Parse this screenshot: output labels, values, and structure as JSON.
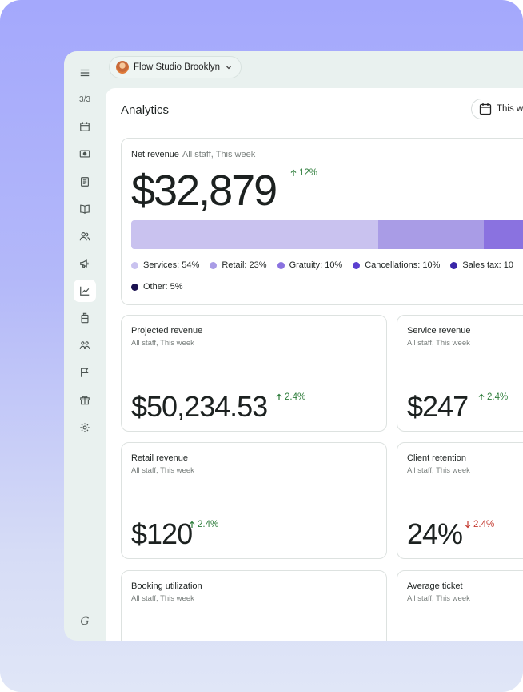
{
  "app": {
    "location_name": "Flow Studio Brooklyn",
    "nav_count": "3/3",
    "logo_glyph": "G"
  },
  "sidebar": {
    "items": [
      {
        "icon": "menu-icon"
      },
      {
        "icon": "calendar-icon"
      },
      {
        "icon": "cash-icon"
      },
      {
        "icon": "receipt-icon"
      },
      {
        "icon": "book-icon"
      },
      {
        "icon": "clients-icon"
      },
      {
        "icon": "megaphone-icon"
      },
      {
        "icon": "analytics-icon",
        "active": true
      },
      {
        "icon": "product-icon"
      },
      {
        "icon": "team-icon"
      },
      {
        "icon": "flag-icon"
      },
      {
        "icon": "gift-icon"
      },
      {
        "icon": "settings-icon"
      }
    ]
  },
  "header": {
    "title": "Analytics",
    "date_button_label": "This w"
  },
  "net_revenue": {
    "title": "Net revenue",
    "subtitle": "All staff, This week",
    "value": "$32,879",
    "delta": "12%",
    "delta_direction": "up",
    "breakdown": [
      {
        "label": "Services: 54%",
        "share": 54,
        "color": "#c9c2ef"
      },
      {
        "label": "Retail: 23%",
        "share": 23,
        "color": "#a99ce6"
      },
      {
        "label": "Gratuity: 10%",
        "share": 10,
        "color": "#8a72e0"
      },
      {
        "label": "Cancellations: 10%",
        "share": 10,
        "color": "#5b3fd0"
      },
      {
        "label": "Sales tax: 10",
        "share": 10,
        "color": "#3a27a8"
      },
      {
        "label": "Other: 5%",
        "share": 5,
        "color": "#1a1150"
      }
    ]
  },
  "metrics": [
    {
      "title": "Projected revenue",
      "subtitle": "All staff, This week",
      "value": "$50,234.53",
      "delta": "2.4%",
      "direction": "up"
    },
    {
      "title": "Service revenue",
      "subtitle": "All staff, This week",
      "value": "$247",
      "delta": "2.4%",
      "direction": "up"
    },
    {
      "title": "Retail revenue",
      "subtitle": "All staff, This week",
      "value": "$120",
      "delta": "2.4%",
      "direction": "up"
    },
    {
      "title": "Client retention",
      "subtitle": "All staff, This week",
      "value": "24%",
      "delta": "2.4%",
      "direction": "down"
    },
    {
      "title": "Booking utilization",
      "subtitle": "All staff, This week",
      "value": "",
      "delta": "",
      "direction": ""
    },
    {
      "title": "Average ticket",
      "subtitle": "All staff, This week",
      "value": "",
      "delta": "",
      "direction": ""
    }
  ],
  "colors": {
    "accent": "#5b3fd0",
    "up": "#2e7d3b",
    "down": "#c4392f",
    "sidebar_bg": "#e9f1ef"
  }
}
